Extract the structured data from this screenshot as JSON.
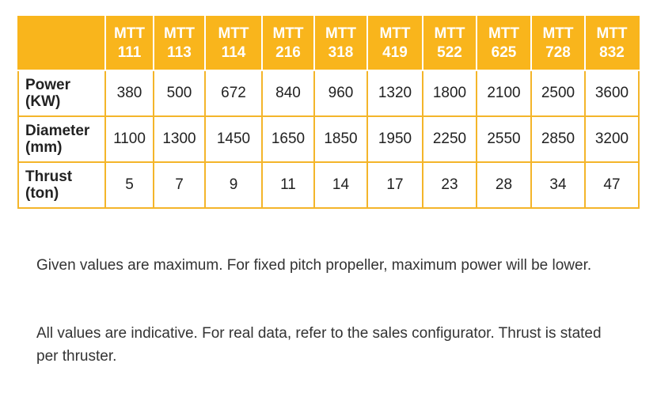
{
  "table": {
    "header": [
      "MTT 111",
      "MTT 113",
      "MTT 114",
      "MTT 216",
      "MTT 318",
      "MTT 419",
      "MTT 522",
      "MTT 625",
      "MTT 728",
      "MTT 832"
    ],
    "rows": [
      {
        "label": "Power (KW)",
        "values": [
          380,
          500,
          672,
          840,
          960,
          1320,
          1800,
          2100,
          2500,
          3600
        ]
      },
      {
        "label": "Diameter (mm)",
        "values": [
          1100,
          1300,
          1450,
          1650,
          1850,
          1950,
          2250,
          2550,
          2850,
          3200
        ]
      },
      {
        "label": "Thrust (ton)",
        "values": [
          5,
          7,
          9,
          11,
          14,
          17,
          23,
          28,
          34,
          47
        ]
      }
    ]
  },
  "notes": [
    "Given values are maximum. For fixed pitch propeller, maximum power will be lower.",
    "All values are indicative. For real data, refer to the sales configurator. Thrust is stated per thruster."
  ]
}
